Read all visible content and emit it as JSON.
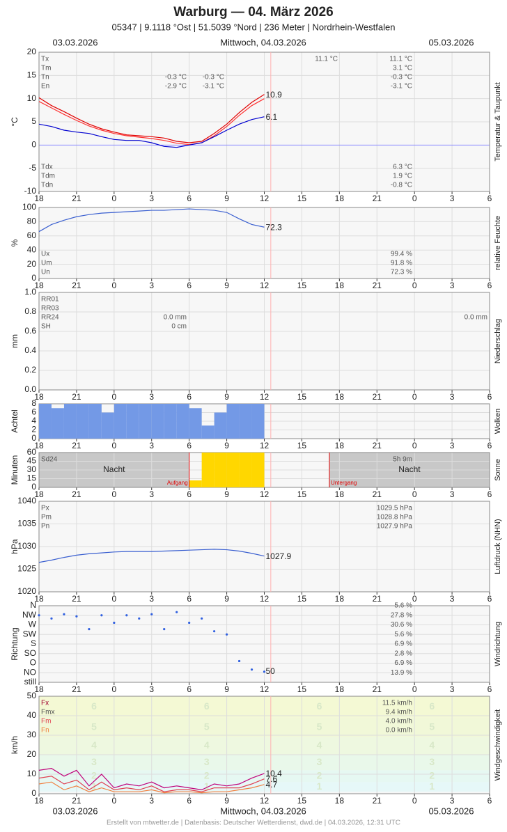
{
  "header": {
    "title": "Warburg  —  04. März 2026",
    "subtitle": "05347  |  9.1118 °Ost  |  51.5039 °Nord  |  236 Meter  |  Nordrhein-Westfalen",
    "date_left": "03.03.2026",
    "date_center": "Mittwoch, 04.03.2026",
    "date_right": "05.03.2026"
  },
  "footer": "Erstellt von mtwetter.de | Datenbasis: Deutscher Wetterdienst, dwd.de | 04.03.2026, 12:31 UTC",
  "x_axis": {
    "xlim": [
      0,
      36
    ],
    "now": 18.52,
    "xticks": [
      {
        "value": 0,
        "label": "18"
      },
      {
        "value": 3,
        "label": "21"
      },
      {
        "value": 6,
        "label": "0"
      },
      {
        "value": 9,
        "label": "3"
      },
      {
        "value": 12,
        "label": "6"
      },
      {
        "value": 15,
        "label": "9"
      },
      {
        "value": 18,
        "label": "12"
      },
      {
        "value": 21,
        "label": "15"
      },
      {
        "value": 24,
        "label": "18"
      },
      {
        "value": 27,
        "label": "21"
      },
      {
        "value": 30,
        "label": "0"
      },
      {
        "value": 33,
        "label": "3"
      },
      {
        "value": 36,
        "label": "6"
      }
    ]
  },
  "chart_data": [
    {
      "type": "line",
      "y_label": "°C",
      "side_label": "Temperatur & Taupunkt",
      "ylim": [
        -10,
        20
      ],
      "yticks": [
        -10,
        -5,
        0,
        5,
        10,
        15,
        20
      ],
      "grid": true,
      "zero_color": "#8888ff",
      "x": [
        0,
        1,
        2,
        3,
        4,
        5,
        6,
        7,
        8,
        9,
        10,
        11,
        12,
        13,
        14,
        15,
        16,
        17,
        18
      ],
      "series": [
        {
          "color": "#ff3030",
          "values": [
            9.4,
            8.0,
            6.6,
            5.3,
            4.1,
            3.2,
            2.5,
            2.0,
            1.7,
            1.4,
            1.0,
            0.4,
            0.1,
            0.5,
            2.0,
            4.0,
            6.4,
            8.5,
            10.0
          ]
        },
        {
          "color": "#e00000",
          "values": [
            10.2,
            8.5,
            7.2,
            5.8,
            4.5,
            3.5,
            2.8,
            2.2,
            2.0,
            1.8,
            1.5,
            0.8,
            0.5,
            0.8,
            2.5,
            4.5,
            7.0,
            9.2,
            10.9
          ],
          "end_label": "10.9"
        },
        {
          "color": "#0000d0",
          "values": [
            4.5,
            4.0,
            3.2,
            2.8,
            2.5,
            1.8,
            1.2,
            1.0,
            1.0,
            0.5,
            -0.3,
            -0.5,
            0.0,
            0.5,
            1.8,
            3.2,
            4.5,
            5.5,
            6.1
          ],
          "end_label": "6.1"
        }
      ],
      "stats": [
        {
          "label": "Tx",
          "max": "11.1 °C",
          "value": "11.1 °C"
        },
        {
          "label": "Tm",
          "value": "3.1 °C"
        },
        {
          "label": "Tn",
          "mid": [
            "-0.3 °C",
            "-0.3 °C"
          ],
          "value": "-0.3 °C"
        },
        {
          "label": "En",
          "mid": [
            "-2.9 °C",
            "-3.1 °C"
          ],
          "value": "-3.1 °C"
        }
      ],
      "stats_low": [
        {
          "label": "Tdx",
          "value": "6.3 °C"
        },
        {
          "label": "Tdm",
          "value": "1.9 °C"
        },
        {
          "label": "Tdn",
          "value": "-0.8 °C"
        }
      ]
    },
    {
      "type": "line",
      "y_label": "%",
      "side_label": "relative Feuchte",
      "ylim": [
        0,
        100
      ],
      "yticks": [
        0,
        20,
        40,
        60,
        80,
        100
      ],
      "grid": true,
      "x": [
        0,
        1,
        2,
        3,
        4,
        5,
        6,
        7,
        8,
        9,
        10,
        11,
        12,
        13,
        14,
        15,
        16,
        17,
        18
      ],
      "series": [
        {
          "color": "#3a5fd0",
          "values": [
            66,
            76,
            82,
            87,
            90,
            92,
            93,
            94,
            95,
            96,
            96,
            97,
            98,
            97,
            96,
            93,
            84,
            76,
            72.3
          ],
          "end_label": "72.3"
        }
      ],
      "stats_low": [
        {
          "label": "Ux",
          "value": "99.4 %"
        },
        {
          "label": "Um",
          "value": "91.8 %"
        },
        {
          "label": "Un",
          "value": "72.3 %"
        }
      ]
    },
    {
      "type": "line",
      "y_label": "mm",
      "side_label": "Niederschlag",
      "ylim": [
        0,
        1
      ],
      "yticks": [
        {
          "value": 0,
          "label": "0.0"
        },
        0.2,
        0.4,
        0.6,
        0.8,
        {
          "value": 1,
          "label": "1.0"
        }
      ],
      "grid": true,
      "stats": [
        {
          "label": "RR01"
        },
        {
          "label": "RR03"
        },
        {
          "label": "RR24",
          "mid": [
            "0.0 mm"
          ],
          "far": "0.0 mm"
        },
        {
          "label": "SH",
          "mid": [
            "0 cm"
          ]
        }
      ]
    },
    {
      "type": "bar",
      "y_label": "Achtel",
      "side_label": "Wolken",
      "ylim": [
        0,
        8
      ],
      "yticks": [
        0,
        2,
        4,
        6,
        8
      ],
      "grid": true,
      "color": "#7399e6",
      "x": [
        0,
        1,
        2,
        3,
        4,
        5,
        6,
        7,
        8,
        9,
        10,
        11,
        12,
        13,
        14,
        15,
        16,
        17
      ],
      "values": [
        8,
        7,
        8,
        8,
        8,
        6,
        8,
        8,
        8,
        8,
        8,
        8,
        7,
        3,
        6,
        8,
        8,
        8
      ]
    },
    {
      "type": "bar",
      "y_label": "Minuten",
      "side_label": "Sonne",
      "ylim": [
        0,
        60
      ],
      "yticks": [
        0,
        15,
        30,
        45,
        60
      ],
      "grid": true,
      "color": "#ffd700",
      "x": [
        12,
        13,
        14,
        15,
        16,
        17
      ],
      "values": [
        12,
        60,
        60,
        60,
        60,
        60
      ],
      "sunrise": 12.0,
      "sunset": 23.2,
      "night_label": "Nacht",
      "sunrise_label": "Aufgang",
      "sunset_label": "Untergang",
      "sum_label": "Sd24",
      "sum_value": "5h 9m"
    },
    {
      "type": "line",
      "y_label": "hPa",
      "side_label": "Luftdruck (NHN)",
      "ylim": [
        1020,
        1040
      ],
      "yticks": [
        1020,
        1025,
        1030,
        1035,
        1040
      ],
      "grid": true,
      "x": [
        0,
        1,
        2,
        3,
        4,
        5,
        6,
        7,
        8,
        9,
        10,
        11,
        12,
        13,
        14,
        15,
        16,
        17,
        18
      ],
      "series": [
        {
          "color": "#3a5fd0",
          "values": [
            1026.5,
            1027.0,
            1027.6,
            1028.1,
            1028.4,
            1028.6,
            1028.8,
            1028.9,
            1028.9,
            1028.9,
            1029.0,
            1029.1,
            1029.2,
            1029.3,
            1029.4,
            1029.3,
            1029.0,
            1028.5,
            1027.9
          ],
          "end_label": "1027.9"
        }
      ],
      "stats": [
        {
          "label": "Px",
          "value": "1029.5 hPa"
        },
        {
          "label": "Pm",
          "value": "1028.8 hPa"
        },
        {
          "label": "Pn",
          "value": "1027.9 hPa"
        }
      ]
    },
    {
      "type": "scatter",
      "y_label": "Richtung",
      "side_label": "Windrichtung",
      "ylim": [
        0,
        360
      ],
      "grid": true,
      "color": "#3060e0",
      "yticks": [
        {
          "value": 360,
          "label": "N"
        },
        {
          "value": 315,
          "label": "NW"
        },
        {
          "value": 270,
          "label": "W"
        },
        {
          "value": 225,
          "label": "SW"
        },
        {
          "value": 180,
          "label": "S"
        },
        {
          "value": 135,
          "label": "SO"
        },
        {
          "value": 90,
          "label": "O"
        },
        {
          "value": 45,
          "label": "NO"
        },
        {
          "value": 0,
          "label": "still"
        }
      ],
      "shares": [
        "5.6 %",
        "27.8 %",
        "30.6 %",
        "5.6 %",
        "6.9 %",
        "2.8 %",
        "6.9 %",
        "13.9 %"
      ],
      "x": [
        0,
        1,
        2,
        3,
        4,
        5,
        6,
        7,
        8,
        9,
        10,
        11,
        12,
        13,
        14,
        15,
        16,
        17,
        18
      ],
      "values": [
        315,
        300,
        320,
        310,
        250,
        315,
        280,
        315,
        300,
        320,
        250,
        330,
        280,
        300,
        240,
        225,
        100,
        60,
        50
      ],
      "end_label": "50"
    },
    {
      "type": "line",
      "y_label": "km/h",
      "side_label": "Windgeschwindigkeit",
      "ylim": [
        0,
        50
      ],
      "yticks": [
        0,
        10,
        20,
        30,
        40,
        50
      ],
      "grid": true,
      "beaufort": {
        "levels": [
          1,
          2,
          3,
          4,
          5,
          6
        ],
        "lower": [
          1,
          6,
          12,
          20,
          29,
          39
        ],
        "colors": [
          "#e6f8f8",
          "#e6f8f2",
          "#e9f8ea",
          "#eef8e0",
          "#f1f8d8",
          "#f4f9d4"
        ]
      },
      "x": [
        0,
        1,
        2,
        3,
        4,
        5,
        6,
        7,
        8,
        9,
        10,
        11,
        12,
        13,
        14,
        15,
        16,
        17,
        18
      ],
      "series": [
        {
          "color": "#c0007a",
          "values": [
            12,
            13,
            9,
            12,
            4,
            10,
            3,
            5,
            4,
            6,
            3,
            4,
            3,
            2,
            5,
            4,
            5,
            8,
            10.4
          ],
          "end_label": "10.4"
        },
        {
          "color": "#e04050",
          "values": [
            8,
            9,
            5,
            7,
            2,
            6,
            2,
            3,
            2,
            4,
            1,
            2,
            2,
            1,
            3,
            3,
            3,
            5,
            7.6
          ],
          "end_label": "7.6"
        },
        {
          "color": "#f08040",
          "values": [
            5,
            6,
            2,
            4,
            1,
            3,
            1,
            1,
            1,
            2,
            0.5,
            1,
            1,
            0.5,
            1,
            1,
            2,
            3,
            4.7
          ],
          "end_label": "4.7"
        }
      ],
      "stats": [
        {
          "label": "Fx",
          "value": "11.5 km/h",
          "color": "#a00030"
        },
        {
          "label": "Fmx",
          "value": "9.4 km/h",
          "color": "#555555"
        },
        {
          "label": "Fm",
          "value": "4.0 km/h",
          "color": "#e04050"
        },
        {
          "label": "Fn",
          "value": "0.0 km/h",
          "color": "#f08040"
        }
      ]
    }
  ]
}
